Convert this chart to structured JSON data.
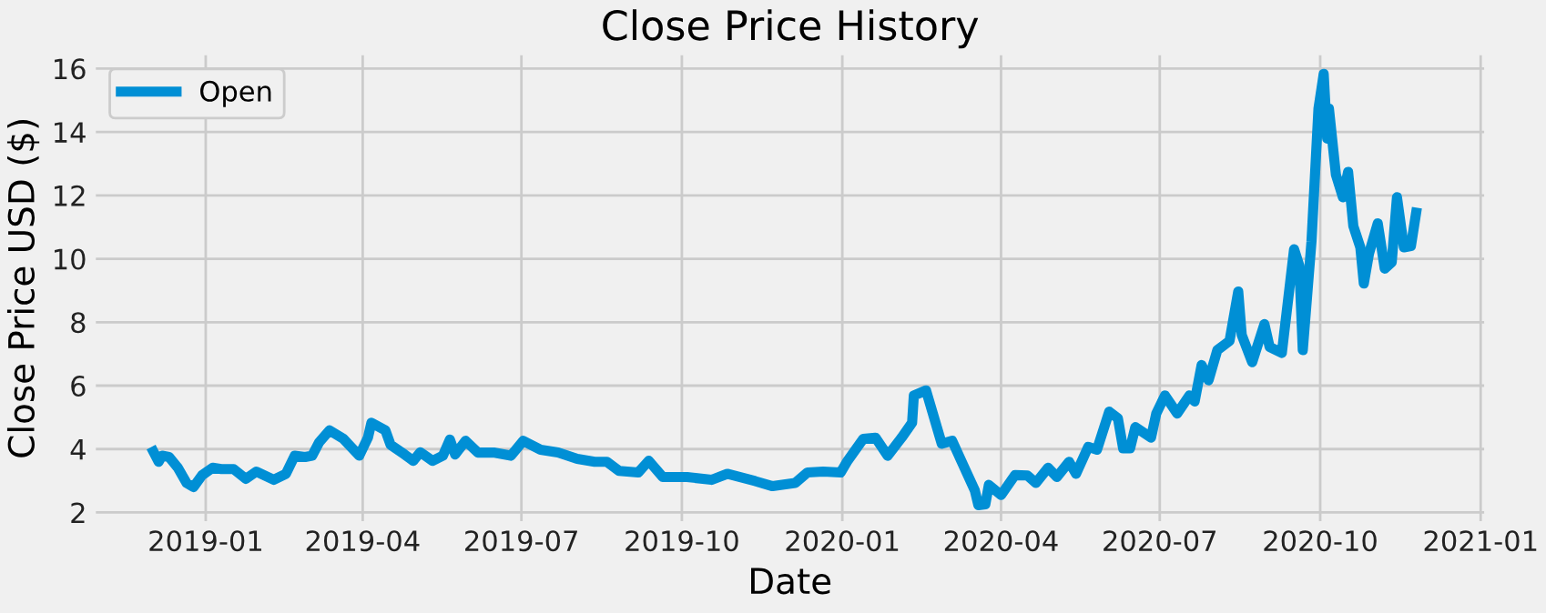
{
  "chart_data": {
    "type": "line",
    "title": "Close Price History",
    "xlabel": "Date",
    "ylabel": "Close Price USD ($)",
    "x": [
      "2018-12-02",
      "2018-12-05",
      "2018-12-07",
      "2018-12-11",
      "2018-12-16",
      "2018-12-21",
      "2018-12-25",
      "2018-12-30",
      "2019-01-05",
      "2019-01-10",
      "2019-01-17",
      "2019-01-24",
      "2019-01-30",
      "2019-02-09",
      "2019-02-16",
      "2019-02-21",
      "2019-02-27",
      "2019-03-03",
      "2019-03-07",
      "2019-03-13",
      "2019-03-21",
      "2019-03-30",
      "2019-04-04",
      "2019-04-06",
      "2019-04-14",
      "2019-04-17",
      "2019-04-25",
      "2019-04-30",
      "2019-05-04",
      "2019-05-11",
      "2019-05-17",
      "2019-05-21",
      "2019-05-24",
      "2019-05-30",
      "2019-06-06",
      "2019-06-15",
      "2019-06-25",
      "2019-07-02",
      "2019-07-12",
      "2019-07-22",
      "2019-08-02",
      "2019-08-12",
      "2019-08-19",
      "2019-08-26",
      "2019-09-06",
      "2019-09-12",
      "2019-09-20",
      "2019-10-04",
      "2019-10-18",
      "2019-10-27",
      "2019-11-12",
      "2019-11-22",
      "2019-12-05",
      "2019-12-12",
      "2019-12-21",
      "2019-12-31",
      "2020-01-04",
      "2020-01-13",
      "2020-01-20",
      "2020-01-27",
      "2020-02-04",
      "2020-02-10",
      "2020-02-11",
      "2020-02-18",
      "2020-02-27",
      "2020-03-04",
      "2020-03-11",
      "2020-03-17",
      "2020-03-19",
      "2020-03-23",
      "2020-03-25",
      "2020-04-01",
      "2020-04-09",
      "2020-04-16",
      "2020-04-21",
      "2020-04-28",
      "2020-05-03",
      "2020-05-10",
      "2020-05-14",
      "2020-05-21",
      "2020-05-26",
      "2020-06-02",
      "2020-06-07",
      "2020-06-10",
      "2020-06-14",
      "2020-06-17",
      "2020-06-26",
      "2020-06-29",
      "2020-07-04",
      "2020-07-11",
      "2020-07-18",
      "2020-07-21",
      "2020-07-25",
      "2020-07-29",
      "2020-08-03",
      "2020-08-10",
      "2020-08-15",
      "2020-08-17",
      "2020-08-23",
      "2020-08-30",
      "2020-09-02",
      "2020-09-09",
      "2020-09-16",
      "2020-09-19",
      "2020-09-21",
      "2020-09-26",
      "2020-09-30",
      "2020-10-03",
      "2020-10-05",
      "2020-10-06",
      "2020-10-10",
      "2020-10-14",
      "2020-10-17",
      "2020-10-20",
      "2020-10-24",
      "2020-10-26",
      "2020-10-29",
      "2020-11-03",
      "2020-11-07",
      "2020-11-11",
      "2020-11-14",
      "2020-11-18",
      "2020-11-22",
      "2020-11-25"
    ],
    "series": [
      {
        "name": "Open",
        "color": "#008fd5",
        "values": [
          3.92,
          3.6,
          3.79,
          3.75,
          3.41,
          2.93,
          2.8,
          3.18,
          3.41,
          3.37,
          3.37,
          3.06,
          3.29,
          3.03,
          3.22,
          3.79,
          3.75,
          3.79,
          4.21,
          4.59,
          4.32,
          3.79,
          4.36,
          4.83,
          4.59,
          4.13,
          3.83,
          3.63,
          3.9,
          3.63,
          3.79,
          4.3,
          3.83,
          4.26,
          3.89,
          3.89,
          3.79,
          4.26,
          3.98,
          3.89,
          3.69,
          3.6,
          3.6,
          3.31,
          3.26,
          3.63,
          3.12,
          3.12,
          3.03,
          3.22,
          2.99,
          2.83,
          2.93,
          3.26,
          3.29,
          3.26,
          3.63,
          4.32,
          4.36,
          3.79,
          4.36,
          4.83,
          5.69,
          5.85,
          4.17,
          4.26,
          3.41,
          2.69,
          2.23,
          2.26,
          2.87,
          2.55,
          3.18,
          3.17,
          2.93,
          3.41,
          3.12,
          3.6,
          3.22,
          4.07,
          3.98,
          5.18,
          4.97,
          4.02,
          4.02,
          4.69,
          4.36,
          5.12,
          5.69,
          5.12,
          5.69,
          5.5,
          6.65,
          6.17,
          7.12,
          7.41,
          8.97,
          7.6,
          6.74,
          7.94,
          7.22,
          7.03,
          10.3,
          9.79,
          7.12,
          10.55,
          14.74,
          15.83,
          13.79,
          14.74,
          12.65,
          11.94,
          12.74,
          11.03,
          10.36,
          9.22,
          10.17,
          11.12,
          9.69,
          9.89,
          11.94,
          10.36,
          10.4,
          11.45
        ]
      }
    ],
    "xlim": [
      "2018-10-30",
      "2021-01-03"
    ],
    "xticks": [
      {
        "value": "2019-01-01",
        "label": "2019-01"
      },
      {
        "value": "2019-04-01",
        "label": "2019-04"
      },
      {
        "value": "2019-07-01",
        "label": "2019-07"
      },
      {
        "value": "2019-10-01",
        "label": "2019-10"
      },
      {
        "value": "2020-01-01",
        "label": "2020-01"
      },
      {
        "value": "2020-04-01",
        "label": "2020-04"
      },
      {
        "value": "2020-07-01",
        "label": "2020-07"
      },
      {
        "value": "2020-10-01",
        "label": "2020-10"
      },
      {
        "value": "2021-01-01",
        "label": "2021-01"
      }
    ],
    "ylim": [
      1.73,
      16.42
    ],
    "yticks": [
      2,
      4,
      6,
      8,
      10,
      12,
      14,
      16
    ],
    "grid": true,
    "legend": "top left",
    "marker": "none",
    "line_style": "solid"
  }
}
